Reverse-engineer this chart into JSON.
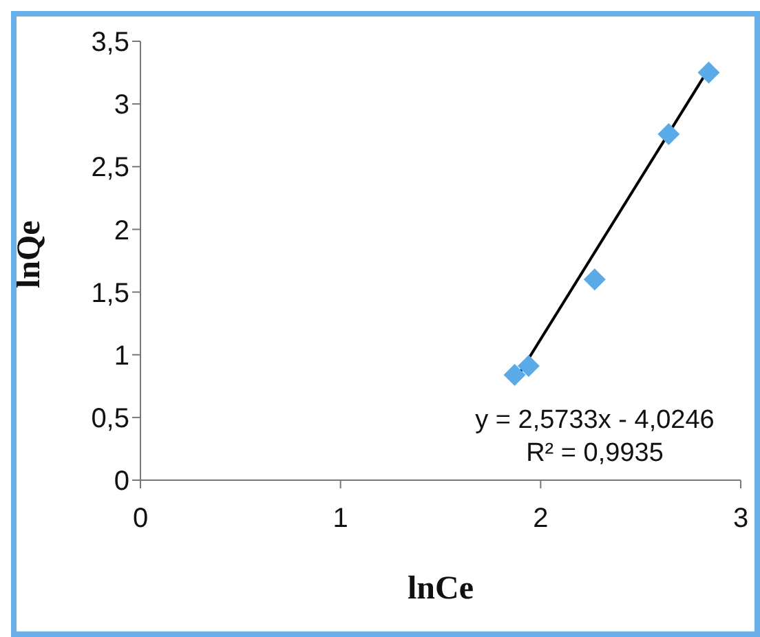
{
  "chart_data": {
    "type": "scatter",
    "xlabel": "lnCe",
    "ylabel": "lnQe",
    "xlim": [
      0,
      3
    ],
    "xticks": [
      0,
      1,
      2,
      3
    ],
    "ylim": [
      0,
      3.5
    ],
    "yticks": [
      0,
      {
        "value": 0.5,
        "label": "0,5"
      },
      1,
      {
        "value": 1.5,
        "label": "1,5"
      },
      2,
      {
        "value": 2.5,
        "label": "2,5"
      },
      3,
      {
        "value": 3.5,
        "label": "3,5"
      }
    ],
    "marker": "diamond",
    "series": [
      {
        "color": "#5aaae8",
        "x": [
          1.87,
          1.94,
          2.27,
          2.64,
          2.84
        ],
        "values": [
          0.84,
          0.91,
          1.6,
          2.76,
          3.25
        ]
      },
      {
        "type": "line",
        "color": "#000000",
        "marker": "none",
        "line_style": "solid",
        "x": [
          1.87,
          2.84
        ],
        "values": [
          0.79,
          3.28
        ]
      }
    ],
    "annotations": [
      "y = 2,5733x - 4,0246",
      "R² = 0,9935"
    ]
  }
}
